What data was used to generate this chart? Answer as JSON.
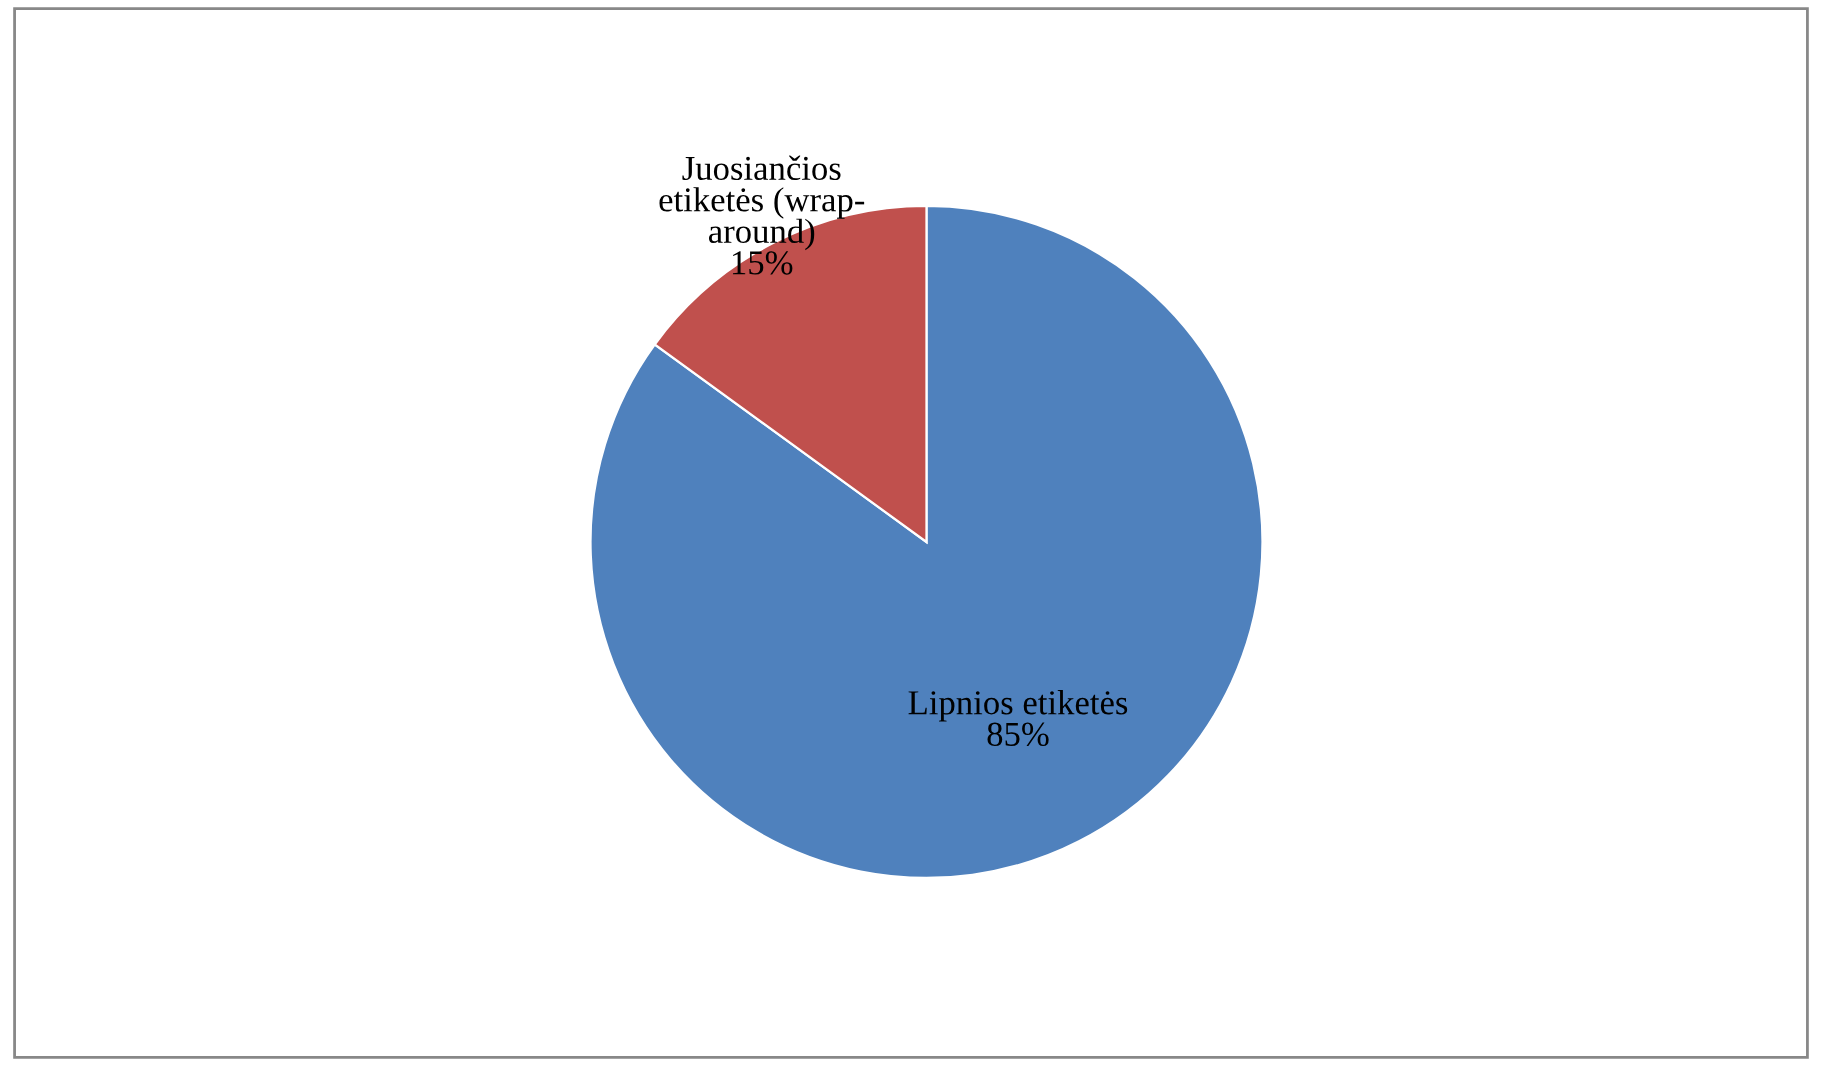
{
  "chart_data": {
    "type": "pie",
    "categories": [
      "Lipnios etiketės",
      "Juosiančios\netiketės (wrap-\naround)"
    ],
    "values": [
      85,
      15
    ],
    "colors": [
      "#4f81bd",
      "#c0504d"
    ],
    "value_labels": [
      "85%",
      "15%"
    ]
  }
}
